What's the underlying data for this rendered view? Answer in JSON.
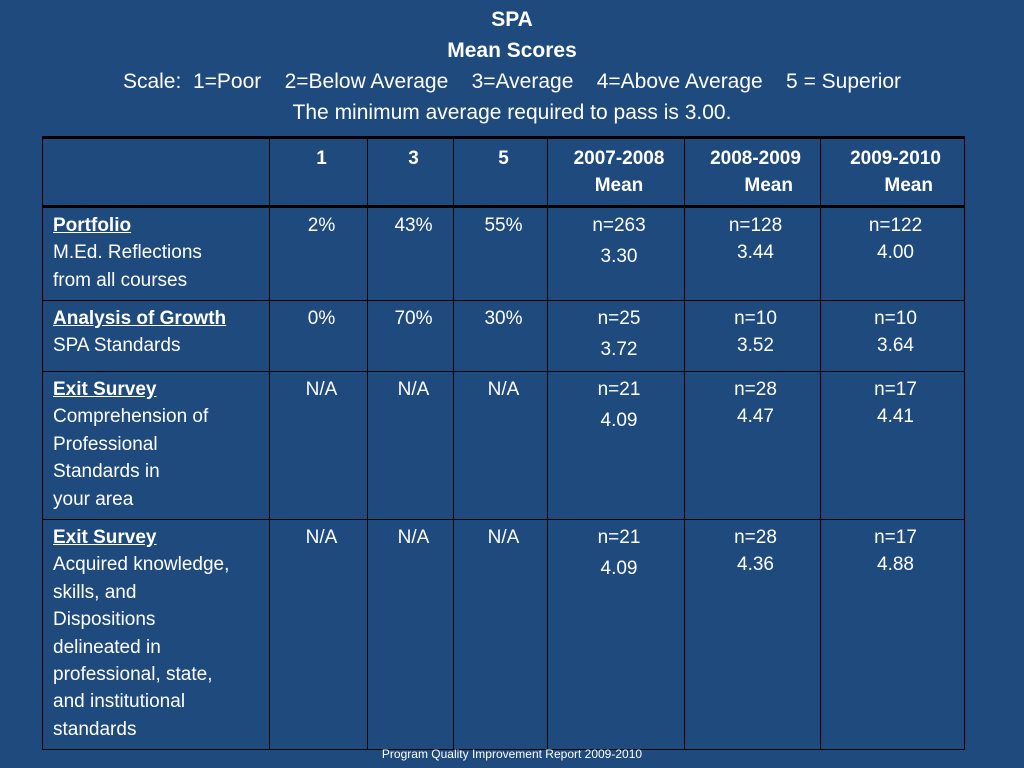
{
  "title": {
    "line1": "SPA",
    "line2": "Mean Scores",
    "scale": "Scale:  1=Poor    2=Below Average    3=Average    4=Above Average    5 = Superior",
    "minimum": "The minimum average required to pass is 3.00."
  },
  "table": {
    "headers": [
      "",
      "1",
      "3",
      "5",
      "2007-2008\nMean",
      "2008-2009\n     Mean",
      "2009-2010\n     Mean"
    ],
    "rows": [
      {
        "title": "Portfolio",
        "subtitle": "M.Ed. Reflections\n from all courses",
        "pct1": "2%",
        "pct3": "43%",
        "pct5": "55%",
        "y0708_n": "n=263",
        "y0708_mean": "3.30",
        "y0809_n": "n=128",
        "y0809_mean": "3.44",
        "y0910_n": "n=122",
        "y0910_mean": "4.00"
      },
      {
        "title": "Analysis of Growth",
        "subtitle": "SPA Standards",
        "pct1": "0%",
        "pct3": "70%",
        "pct5": "30%",
        "y0708_n": "n=25",
        "y0708_mean": "3.72",
        "y0809_n": "n=10",
        "y0809_mean": "3.52",
        "y0910_n": "n=10",
        "y0910_mean": "3.64"
      },
      {
        "title": "Exit Survey",
        "subtitle": "Comprehension of\n Professional\nStandards in\n your area",
        "pct1": "N/A",
        "pct3": "N/A",
        "pct5": "N/A",
        "y0708_n": "n=21",
        "y0708_mean": "4.09",
        "y0809_n": "n=28",
        "y0809_mean": "4.47",
        "y0910_n": "n=17",
        "y0910_mean": "4.41"
      },
      {
        "title": "Exit Survey",
        "subtitle": "Acquired knowledge,\n skills, and\nDispositions\n delineated  in\n professional, state,\n and institutional\n standards",
        "pct1": "N/A",
        "pct3": "N/A",
        "pct5": "N/A",
        "y0708_n": "n=21",
        "y0708_mean": "4.09",
        "y0809_n": "n=28",
        "y0809_mean": "4.36",
        "y0910_n": "n=17",
        "y0910_mean": "4.88"
      }
    ]
  },
  "footer": "Program Quality Improvement Report  2009-2010"
}
